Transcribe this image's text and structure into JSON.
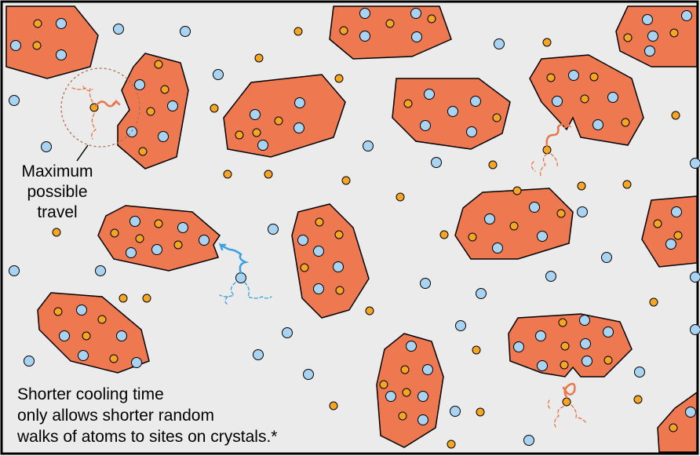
{
  "travel_label": [
    "Maximum",
    "possible",
    "travel"
  ],
  "caption": [
    "Shorter cooling time",
    "only allows shorter random",
    "walks of atoms to sites on crystals.*"
  ]
}
